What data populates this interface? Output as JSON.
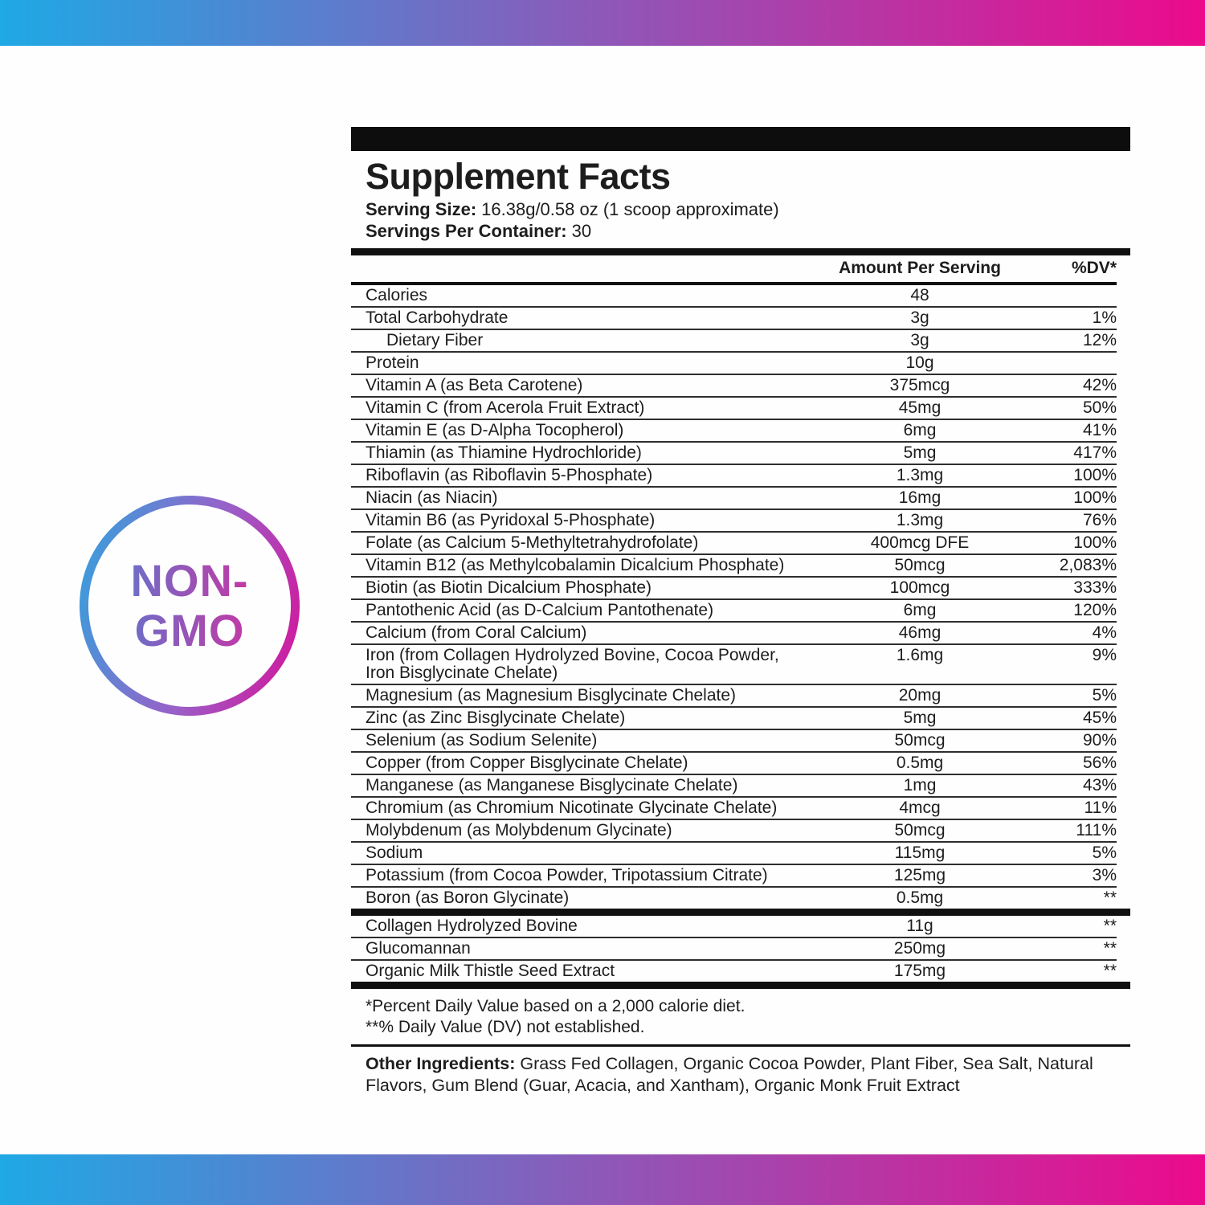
{
  "page": {
    "background": "#FEFEFE",
    "gradient_left_color": "#1FA9E5",
    "gradient_right_color": "#EC0A8C"
  },
  "badge": {
    "line1": "NON-",
    "line2": "GMO"
  },
  "panel": {
    "title": "Supplement Facts",
    "serving_size_label": "Serving Size:",
    "serving_size_value": "16.38g/0.58 oz (1 scoop approximate)",
    "servings_label": "Servings Per Container:",
    "servings_value": "30",
    "col_amount": "Amount Per Serving",
    "col_dv": "%DV*",
    "rows": [
      {
        "name": "Calories",
        "amount": "48",
        "dv": ""
      },
      {
        "name": "Total Carbohydrate",
        "amount": "3g",
        "dv": "1%"
      },
      {
        "name": "Dietary Fiber",
        "amount": "3g",
        "dv": "12%",
        "indent": true
      },
      {
        "name": "Protein",
        "amount": "10g",
        "dv": ""
      },
      {
        "name": "Vitamin A (as Beta Carotene)",
        "amount": "375mcg",
        "dv": "42%"
      },
      {
        "name": "Vitamin C (from Acerola Fruit Extract)",
        "amount": "45mg",
        "dv": "50%"
      },
      {
        "name": "Vitamin E (as D-Alpha Tocopherol)",
        "amount": "6mg",
        "dv": "41%"
      },
      {
        "name": "Thiamin (as Thiamine Hydrochloride)",
        "amount": "5mg",
        "dv": "417%"
      },
      {
        "name": "Riboflavin (as Riboflavin 5-Phosphate)",
        "amount": "1.3mg",
        "dv": "100%"
      },
      {
        "name": "Niacin (as Niacin)",
        "amount": "16mg",
        "dv": "100%"
      },
      {
        "name": "Vitamin B6 (as Pyridoxal 5-Phosphate)",
        "amount": "1.3mg",
        "dv": "76%"
      },
      {
        "name": "Folate (as Calcium 5-Methyltetrahydrofolate)",
        "amount": "400mcg DFE",
        "dv": "100%"
      },
      {
        "name": "Vitamin B12 (as Methylcobalamin Dicalcium Phosphate)",
        "amount": "50mcg",
        "dv": "2,083%"
      },
      {
        "name": "Biotin (as Biotin Dicalcium Phosphate)",
        "amount": "100mcg",
        "dv": "333%"
      },
      {
        "name": "Pantothenic Acid (as D-Calcium Pantothenate)",
        "amount": "6mg",
        "dv": "120%"
      },
      {
        "name": "Calcium (from Coral Calcium)",
        "amount": "46mg",
        "dv": "4%"
      },
      {
        "name": "Iron (from Collagen Hydrolyzed Bovine, Cocoa Powder,\nIron Bisglycinate Chelate)",
        "amount": "1.6mg",
        "dv": "9%"
      },
      {
        "name": "Magnesium (as Magnesium Bisglycinate Chelate)",
        "amount": "20mg",
        "dv": "5%"
      },
      {
        "name": "Zinc (as Zinc Bisglycinate Chelate)",
        "amount": "5mg",
        "dv": "45%"
      },
      {
        "name": "Selenium (as Sodium Selenite)",
        "amount": "50mcg",
        "dv": "90%"
      },
      {
        "name": "Copper (from Copper Bisglycinate Chelate)",
        "amount": "0.5mg",
        "dv": "56%"
      },
      {
        "name": "Manganese (as Manganese Bisglycinate Chelate)",
        "amount": "1mg",
        "dv": "43%"
      },
      {
        "name": "Chromium (as Chromium Nicotinate Glycinate Chelate)",
        "amount": "4mcg",
        "dv": "11%"
      },
      {
        "name": "Molybdenum (as Molybdenum Glycinate)",
        "amount": "50mcg",
        "dv": "111%"
      },
      {
        "name": "Sodium",
        "amount": "115mg",
        "dv": "5%"
      },
      {
        "name": "Potassium (from Cocoa Powder, Tripotassium Citrate)",
        "amount": "125mg",
        "dv": "3%"
      },
      {
        "name": "Boron (as Boron Glycinate)",
        "amount": "0.5mg",
        "dv": "**"
      }
    ],
    "blend_rows": [
      {
        "name": "Collagen Hydrolyzed Bovine",
        "amount": "11g",
        "dv": "**"
      },
      {
        "name": "Glucomannan",
        "amount": "250mg",
        "dv": "**"
      },
      {
        "name": "Organic Milk Thistle Seed Extract",
        "amount": "175mg",
        "dv": "**"
      }
    ],
    "footnote1": "*Percent Daily Value based on a 2,000 calorie diet.",
    "footnote2": "**% Daily Value (DV) not established.",
    "other_ingredients_label": "Other Ingredients:",
    "other_ingredients_value": "Grass Fed Collagen, Organic Cocoa Powder, Plant Fiber, Sea Salt, Natural Flavors, Gum Blend (Guar, Acacia, and Xantham), Organic Monk Fruit Extract"
  }
}
